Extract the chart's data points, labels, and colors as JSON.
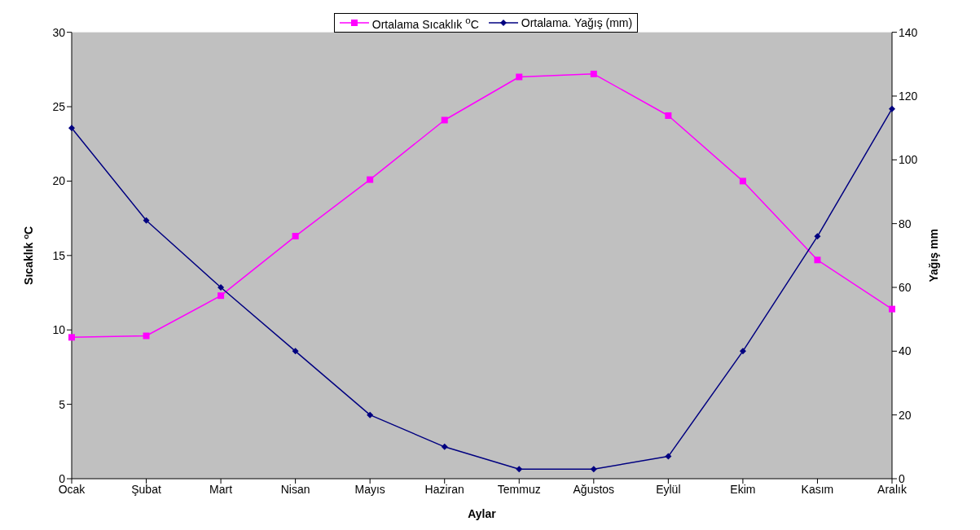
{
  "chart_data": {
    "type": "line",
    "xlabel": "Aylar",
    "ylabel": "Sıcaklık $^{o}$C",
    "y2label": "Yağış mm",
    "categories": [
      "Ocak",
      "Şubat",
      "Mart",
      "Nisan",
      "Mayıs",
      "Haziran",
      "Temmuz",
      "Ağustos",
      "Eylül",
      "Ekim",
      "Kasım",
      "Aralık"
    ],
    "series": [
      {
        "name": "Ortalama Sıcaklık $^{o}$C",
        "color": "#ff00ff",
        "marker": "square",
        "values": [
          9.5,
          9.6,
          12.3,
          16.3,
          20.1,
          24.1,
          27.0,
          27.2,
          24.4,
          20.0,
          14.7,
          11.4
        ]
      },
      {
        "name": "Ortalama. Yağış (mm)",
        "color": "#000080",
        "marker": "diamond",
        "axis": "y2",
        "values": [
          110,
          81,
          60,
          40,
          20,
          10,
          3,
          3,
          7,
          40,
          76,
          116
        ]
      }
    ],
    "ylim": [
      0,
      30
    ],
    "yticks": [
      0,
      5,
      10,
      15,
      20,
      25,
      30
    ],
    "y2lim": [
      0,
      140
    ],
    "y2ticks": [
      0,
      20,
      40,
      60,
      80,
      100,
      120,
      140
    ],
    "legend": "top"
  }
}
